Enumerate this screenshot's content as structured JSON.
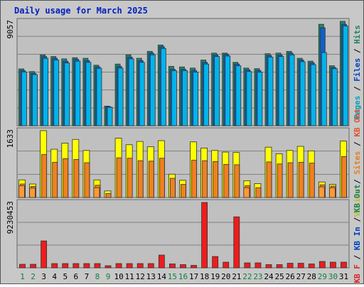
{
  "chart_data": {
    "type": "bar",
    "title": "Daily usage for March 2025",
    "categories": [
      "1",
      "2",
      "3",
      "4",
      "5",
      "6",
      "7",
      "8",
      "9",
      "10",
      "11",
      "12",
      "13",
      "14",
      "15",
      "16",
      "17",
      "18",
      "19",
      "20",
      "21",
      "22",
      "23",
      "24",
      "25",
      "26",
      "27",
      "28",
      "29",
      "30",
      "31"
    ],
    "weekend_days": [
      1,
      2,
      8,
      9,
      15,
      16,
      22,
      23,
      29,
      30
    ],
    "panels": [
      {
        "id": "requests",
        "axis_max_label": "9057",
        "ylim": [
          0,
          9057
        ],
        "right_label": [
          {
            "text": "Pages",
            "color": "#00a0c0"
          },
          {
            "text": " / ",
            "color": "#000000"
          },
          {
            "text": "Files",
            "color": "#0040c0"
          },
          {
            "text": " / ",
            "color": "#000000"
          },
          {
            "text": "Hits",
            "color": "#208060"
          }
        ],
        "series": [
          {
            "name": "Hits",
            "color": "#1b8a6b",
            "values": [
              4930,
              4700,
              6150,
              6000,
              5800,
              5900,
              5850,
              5250,
              1700,
              5350,
              6150,
              5850,
              6450,
              7000,
              5150,
              5100,
              5000,
              5700,
              6300,
              6300,
              5500,
              5000,
              4950,
              6250,
              6300,
              6450,
              5850,
              5600,
              8800,
              5200,
              9057
            ]
          },
          {
            "name": "Files",
            "color": "#1060c8",
            "values": [
              4790,
              4550,
              6000,
              5850,
              5600,
              5750,
              5650,
              5100,
              1650,
              5150,
              5950,
              5650,
              6300,
              6850,
              4900,
              4900,
              4800,
              5500,
              6150,
              6200,
              5350,
              4850,
              4800,
              6100,
              6150,
              6300,
              5700,
              5450,
              8500,
              5050,
              8800
            ]
          },
          {
            "name": "Pages",
            "color": "#00b4ec",
            "values": [
              4670,
              4440,
              5850,
              5700,
              5450,
              5600,
              5500,
              4980,
              1600,
              5000,
              5800,
              5500,
              6150,
              6700,
              4780,
              4780,
              4650,
              5350,
              6000,
              6050,
              5200,
              4700,
              4650,
              5950,
              6000,
              6150,
              5550,
              5300,
              6350,
              4950,
              8650
            ]
          }
        ]
      },
      {
        "id": "volume",
        "axis_max_label": "1633",
        "ylim": [
          0,
          1633
        ],
        "right_label": [
          {
            "text": "Visits",
            "color": "#c0c020"
          },
          {
            "text": " / ",
            "color": "#000000"
          },
          {
            "text": "Sites",
            "color": "#e08020"
          },
          {
            "text": " / ",
            "color": "#000000"
          },
          {
            "text": "KB Out",
            "color": "#e05030"
          }
        ],
        "series": [
          {
            "name": "Visits",
            "color": "#ffff00",
            "values": [
              430,
              330,
              1633,
              1180,
              1330,
              1420,
              1150,
              430,
              160,
              1450,
              1290,
              1370,
              1240,
              1390,
              570,
              420,
              1360,
              1210,
              1150,
              1110,
              1100,
              410,
              340,
              1230,
              1070,
              1150,
              1250,
              1140,
              380,
              320,
              1380
            ]
          },
          {
            "name": "Sites",
            "color": "#f08020",
            "values": [
              330,
              270,
              1050,
              860,
              950,
              930,
              850,
              300,
              100,
              970,
              960,
              900,
              890,
              960,
              470,
              320,
              910,
              900,
              880,
              810,
              800,
              290,
              240,
              870,
              820,
              850,
              860,
              840,
              310,
              280,
              1000
            ]
          },
          {
            "name": "KB Out",
            "color": "#ff9933",
            "values": [
              290,
              230,
              0,
              0,
              0,
              0,
              0,
              240,
              0,
              0,
              0,
              0,
              0,
              0,
              0,
              0,
              0,
              0,
              0,
              0,
              0,
              240,
              0,
              0,
              0,
              0,
              0,
              0,
              260,
              240,
              0
            ]
          }
        ]
      },
      {
        "id": "kbytes",
        "axis_max_label": "9230453",
        "ylim": [
          0,
          9230453
        ],
        "right_label": [
          {
            "text": "KB F",
            "color": "#e02020"
          },
          {
            "text": " / ",
            "color": "#000000"
          },
          {
            "text": "KB In",
            "color": "#0040c0"
          },
          {
            "text": " / ",
            "color": "#000000"
          },
          {
            "text": "KB Out",
            "color": "#208060"
          }
        ],
        "series": [
          {
            "name": "KB F",
            "color": "#ee1c1c",
            "values": [
              500000,
              500000,
              3800000,
              600000,
              600000,
              600000,
              600000,
              600000,
              300000,
              600000,
              600000,
              600000,
              600000,
              1800000,
              550000,
              450000,
              350000,
              9230453,
              1600000,
              800000,
              7200000,
              700000,
              700000,
              450000,
              450000,
              650000,
              650000,
              550000,
              900000,
              800000,
              800000
            ]
          }
        ]
      }
    ]
  }
}
